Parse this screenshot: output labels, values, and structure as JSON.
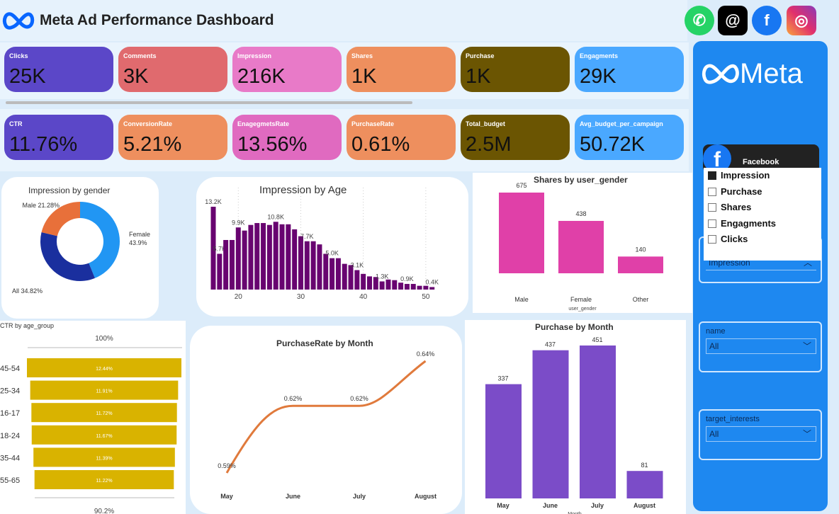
{
  "header": {
    "title": "Meta Ad Performance Dashboard",
    "social_icons": [
      "whatsapp-icon",
      "threads-icon",
      "facebook-icon",
      "instagram-icon"
    ]
  },
  "kpis_row1": [
    {
      "label": "Clicks",
      "value": "25K",
      "color": "#5b47c8"
    },
    {
      "label": "Comments",
      "value": "3K",
      "color": "#e06a6e"
    },
    {
      "label": "Impression",
      "value": "216K",
      "color": "#e87ac8"
    },
    {
      "label": "Shares",
      "value": "1K",
      "color": "#ee8f5e"
    },
    {
      "label": "Purchase",
      "value": "1K",
      "color": "#6b5502"
    },
    {
      "label": "Engagments",
      "value": "29K",
      "color": "#4aa8ff"
    }
  ],
  "kpis_row2": [
    {
      "label": "CTR",
      "value": "11.76%",
      "color": "#5b47c8"
    },
    {
      "label": "ConversionRate",
      "value": "5.21%",
      "color": "#ee8f5e"
    },
    {
      "label": "EnagegmetsRate",
      "value": "13.56%",
      "color": "#e06ac0"
    },
    {
      "label": "PurchaseRate",
      "value": "0.61%",
      "color": "#ee8f5e"
    },
    {
      "label": "Total_budget",
      "value": "2.5M",
      "color": "#6b5502"
    },
    {
      "label": "Avg_budget_per_campaign",
      "value": "50.72K",
      "color": "#4aa8ff"
    }
  ],
  "sidebar": {
    "logo": "Meta",
    "card_label": "Facebook",
    "metric_options": [
      {
        "label": "Impression",
        "checked": true
      },
      {
        "label": "Purchase",
        "checked": false
      },
      {
        "label": "Shares",
        "checked": false
      },
      {
        "label": "Engagments",
        "checked": false
      },
      {
        "label": "Clicks",
        "checked": false
      }
    ],
    "metric_selected": "Impression",
    "name_label": "name",
    "name_value": "All",
    "interests_label": "target_interests",
    "interests_value": "All"
  },
  "chart_data": [
    {
      "type": "pie",
      "title": "Impression by gender",
      "labels": [
        "Female",
        "All",
        "Male"
      ],
      "values": [
        43.9,
        34.82,
        21.28
      ],
      "data_labels": [
        "Female 43.9%",
        "All 34.82%",
        "Male 21.28%"
      ],
      "colors": [
        "#2196f3",
        "#1a2f9e",
        "#e8703a"
      ]
    },
    {
      "type": "bar",
      "title": "Impression by Age",
      "x": [
        16,
        17,
        18,
        19,
        20,
        21,
        22,
        23,
        24,
        25,
        26,
        27,
        28,
        29,
        30,
        31,
        32,
        33,
        34,
        35,
        36,
        37,
        38,
        39,
        40,
        41,
        42,
        43,
        44,
        45,
        46,
        47,
        48,
        49,
        50,
        51
      ],
      "values": [
        13.2,
        5.7,
        7.9,
        7.9,
        9.9,
        9.4,
        10.3,
        10.6,
        10.6,
        10.3,
        10.8,
        10.4,
        10.4,
        9.6,
        8.5,
        7.7,
        7.7,
        7.2,
        5.7,
        5.0,
        5.0,
        4.1,
        3.9,
        3.1,
        2.5,
        2.1,
        2.0,
        1.3,
        1.6,
        1.5,
        1.1,
        0.9,
        0.9,
        0.6,
        0.6,
        0.4
      ],
      "unit": "K",
      "data_labels": {
        "16": "13.2K",
        "17": "5.7K",
        "20": "9.9K",
        "26": "10.8K",
        "31": "7.7K",
        "35": "5.0K",
        "39": "3.1K",
        "43": "1.3K",
        "47": "0.9K",
        "51": "0.4K"
      },
      "xticks": [
        20,
        30,
        40,
        50
      ],
      "color": "#680470"
    },
    {
      "type": "bar",
      "title": "Shares by user_gender",
      "xlabel": "user_gender",
      "categories": [
        "Male",
        "Female",
        "Other"
      ],
      "values": [
        675,
        438,
        140
      ],
      "color": "#e040a8"
    },
    {
      "type": "bar",
      "title": "CTR by age_group",
      "orientation": "funnel",
      "categories": [
        "45-54",
        "25-34",
        "16-17",
        "18-24",
        "35-44",
        "55-65"
      ],
      "values": [
        12.44,
        11.91,
        11.72,
        11.67,
        11.39,
        11.22
      ],
      "data_labels": [
        "12.44%",
        "11.91%",
        "11.72%",
        "11.67%",
        "11.39%",
        "11.22%"
      ],
      "top_label": "100%",
      "bottom_label": "90.2%",
      "color": "#d9b300"
    },
    {
      "type": "line",
      "title": "PurchaseRate by Month",
      "categories": [
        "May",
        "June",
        "July",
        "August"
      ],
      "values": [
        0.59,
        0.62,
        0.62,
        0.64
      ],
      "data_labels": [
        "0.59%",
        "0.62%",
        "0.62%",
        "0.64%"
      ],
      "color": "#e07a3c"
    },
    {
      "type": "bar",
      "title": "Purchase by Month",
      "xlabel": "Month",
      "categories": [
        "May",
        "June",
        "July",
        "August"
      ],
      "values": [
        337,
        437,
        451,
        81
      ],
      "color": "#7b4cc8"
    }
  ]
}
